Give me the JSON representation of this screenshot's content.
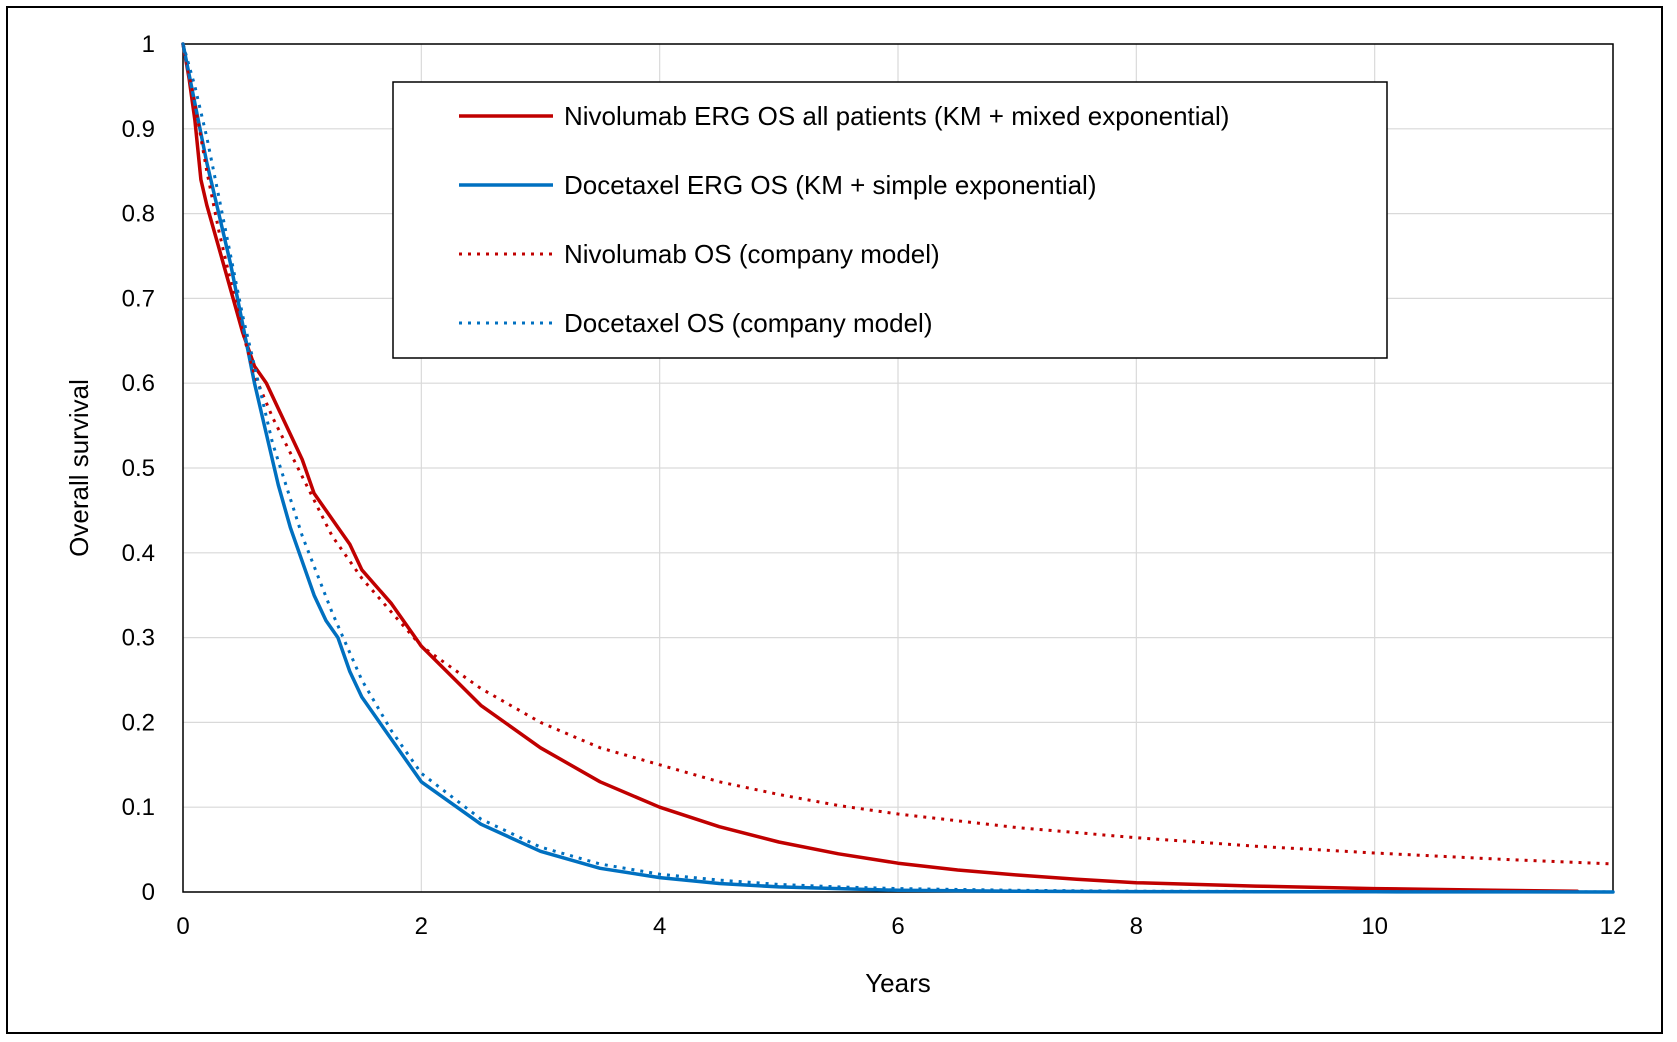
{
  "chart_data": {
    "type": "line",
    "title": "",
    "xlabel": "Years",
    "ylabel": "Overall survival",
    "xlim": [
      0,
      12
    ],
    "ylim": [
      0,
      1
    ],
    "x_ticks": [
      0,
      2,
      4,
      6,
      8,
      10,
      12
    ],
    "y_ticks": [
      0,
      0.1,
      0.2,
      0.3,
      0.4,
      0.5,
      0.6,
      0.7,
      0.8,
      0.9,
      1
    ],
    "y_tick_labels": [
      "0",
      "0.1",
      "0.2",
      "0.3",
      "0.4",
      "0.5",
      "0.6",
      "0.7",
      "0.8",
      "0.9",
      "1"
    ],
    "grid": true,
    "legend_position": "top-center",
    "series": [
      {
        "name": "Nivolumab ERG OS all patients (KM + mixed exponential)",
        "color": "#c00000",
        "style": "solid",
        "x": [
          0,
          0.05,
          0.1,
          0.15,
          0.2,
          0.3,
          0.4,
          0.5,
          0.6,
          0.7,
          0.8,
          0.9,
          1.0,
          1.1,
          1.2,
          1.3,
          1.4,
          1.5,
          1.75,
          2.0,
          2.5,
          3.0,
          3.5,
          4.0,
          4.5,
          5.0,
          5.5,
          6.0,
          6.5,
          7.0,
          7.5,
          8.0,
          9.0,
          10.0,
          11.0,
          11.7
        ],
        "y": [
          1.0,
          0.96,
          0.91,
          0.84,
          0.81,
          0.76,
          0.71,
          0.66,
          0.62,
          0.6,
          0.57,
          0.54,
          0.51,
          0.47,
          0.45,
          0.43,
          0.41,
          0.38,
          0.34,
          0.29,
          0.22,
          0.17,
          0.13,
          0.1,
          0.077,
          0.059,
          0.045,
          0.034,
          0.026,
          0.02,
          0.015,
          0.011,
          0.007,
          0.004,
          0.002,
          0.001
        ]
      },
      {
        "name": "Docetaxel ERG OS (KM + simple exponential)",
        "color": "#0070c0",
        "style": "solid",
        "x": [
          0,
          0.1,
          0.2,
          0.3,
          0.4,
          0.5,
          0.6,
          0.7,
          0.8,
          0.9,
          1.0,
          1.1,
          1.2,
          1.3,
          1.4,
          1.5,
          1.75,
          2.0,
          2.5,
          3.0,
          3.5,
          4.0,
          4.5,
          5.0,
          5.5,
          6.0,
          7.0,
          8.0,
          10.0,
          12.0
        ],
        "y": [
          1.0,
          0.93,
          0.86,
          0.8,
          0.74,
          0.67,
          0.6,
          0.54,
          0.48,
          0.43,
          0.39,
          0.35,
          0.32,
          0.3,
          0.26,
          0.23,
          0.18,
          0.13,
          0.08,
          0.048,
          0.028,
          0.017,
          0.01,
          0.006,
          0.004,
          0.002,
          0.001,
          0.0005,
          0.0002,
          0.0
        ]
      },
      {
        "name": "Nivolumab OS (company model)",
        "color": "#c00000",
        "style": "dotted",
        "x": [
          0,
          0.1,
          0.2,
          0.3,
          0.4,
          0.5,
          0.6,
          0.75,
          1.0,
          1.25,
          1.5,
          1.75,
          2.0,
          2.5,
          3.0,
          3.5,
          4.0,
          4.5,
          5.0,
          5.5,
          6.0,
          7.0,
          8.0,
          9.0,
          10.0,
          11.0,
          12.0
        ],
        "y": [
          1.0,
          0.93,
          0.85,
          0.78,
          0.72,
          0.66,
          0.61,
          0.56,
          0.49,
          0.42,
          0.37,
          0.33,
          0.29,
          0.24,
          0.2,
          0.17,
          0.15,
          0.13,
          0.115,
          0.102,
          0.092,
          0.076,
          0.064,
          0.054,
          0.046,
          0.039,
          0.033
        ]
      },
      {
        "name": "Docetaxel OS (company model)",
        "color": "#0070c0",
        "style": "dotted",
        "x": [
          0,
          0.1,
          0.2,
          0.3,
          0.4,
          0.5,
          0.6,
          0.75,
          1.0,
          1.25,
          1.5,
          1.75,
          2.0,
          2.5,
          3.0,
          3.5,
          4.0,
          4.5,
          5.0,
          5.5,
          6.0,
          7.0,
          8.0,
          10.0,
          12.0
        ],
        "y": [
          1.0,
          0.95,
          0.89,
          0.82,
          0.75,
          0.68,
          0.62,
          0.53,
          0.42,
          0.33,
          0.25,
          0.19,
          0.14,
          0.086,
          0.053,
          0.033,
          0.021,
          0.014,
          0.009,
          0.006,
          0.004,
          0.002,
          0.001,
          0.0003,
          0.0001
        ]
      }
    ]
  }
}
